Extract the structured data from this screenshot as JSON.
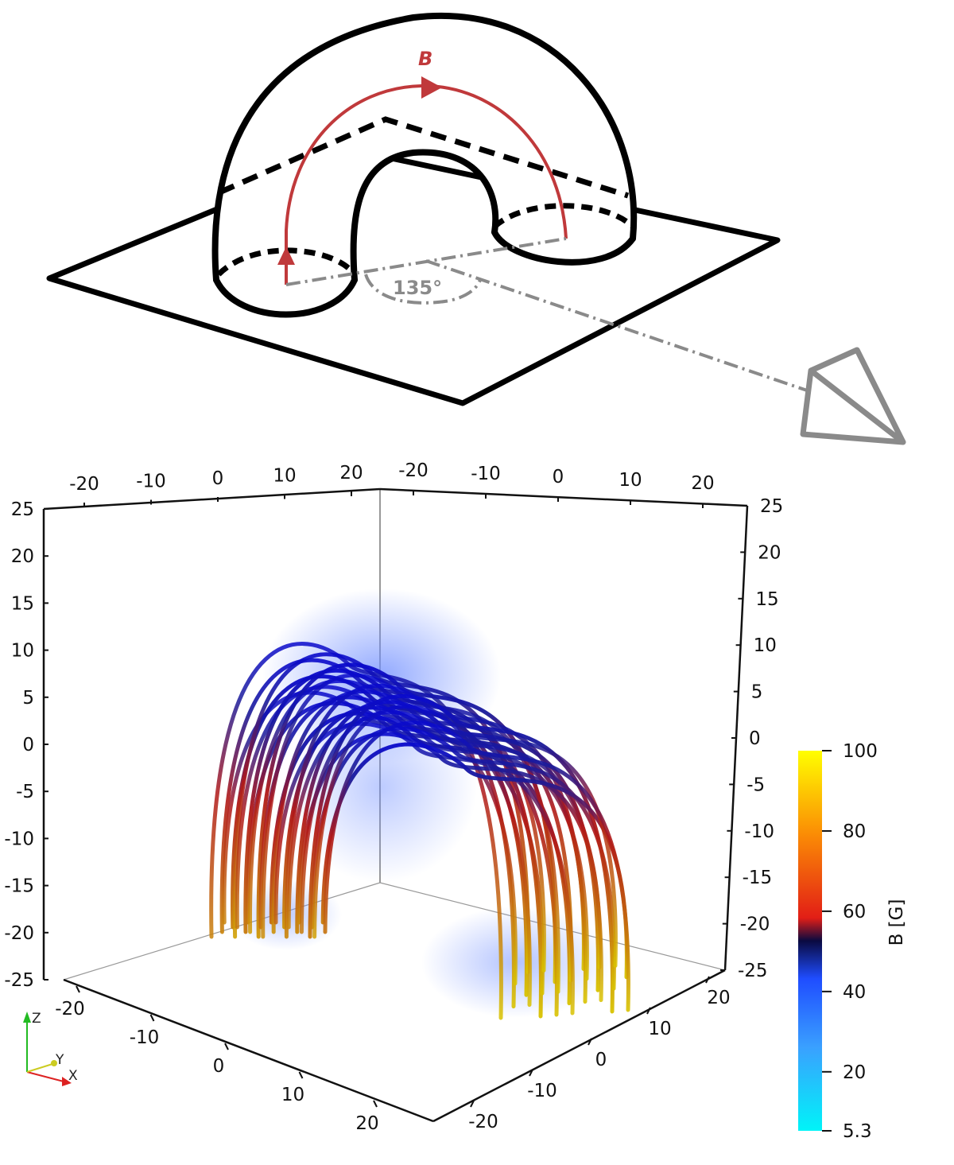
{
  "schematic": {
    "field_label": "B",
    "angle_label": "135°"
  },
  "plot3d": {
    "x_axis_ticks": [
      "-20",
      "-10",
      "0",
      "10",
      "20"
    ],
    "y_axis_ticks": [
      "20",
      "10",
      "0",
      "-10",
      "-20"
    ],
    "top_back_ticks": [
      "-20",
      "-10",
      "0",
      "10",
      "20"
    ],
    "top_front_ticks": [
      "-20",
      "-10",
      "0",
      "10",
      "20"
    ],
    "left_z_ticks": [
      "25",
      "20",
      "15",
      "10",
      "5",
      "0",
      "-5",
      "-10",
      "-15",
      "-20",
      "-25"
    ],
    "right_z_ticks": [
      "25",
      "20",
      "15",
      "10",
      "5",
      "0",
      "-5",
      "-10",
      "-15",
      "-20",
      "-25"
    ],
    "orientation_labels": {
      "z": "Z",
      "y": "Y",
      "x": "X"
    }
  },
  "colorbar": {
    "title": "B [G]",
    "ticks": [
      "100",
      "80",
      "60",
      "40",
      "20",
      "5.3"
    ],
    "min": 5.3,
    "max": 100,
    "colors": {
      "low": "#00f4f8",
      "blue": "#1f4dff",
      "dark": "#0a0a40",
      "red": "#e21e16",
      "orange": "#fb8c05",
      "high": "#ffff00"
    }
  },
  "colors": {
    "field_line": "#c0393b",
    "camera": "#8a8a8a",
    "outline": "#000000"
  }
}
